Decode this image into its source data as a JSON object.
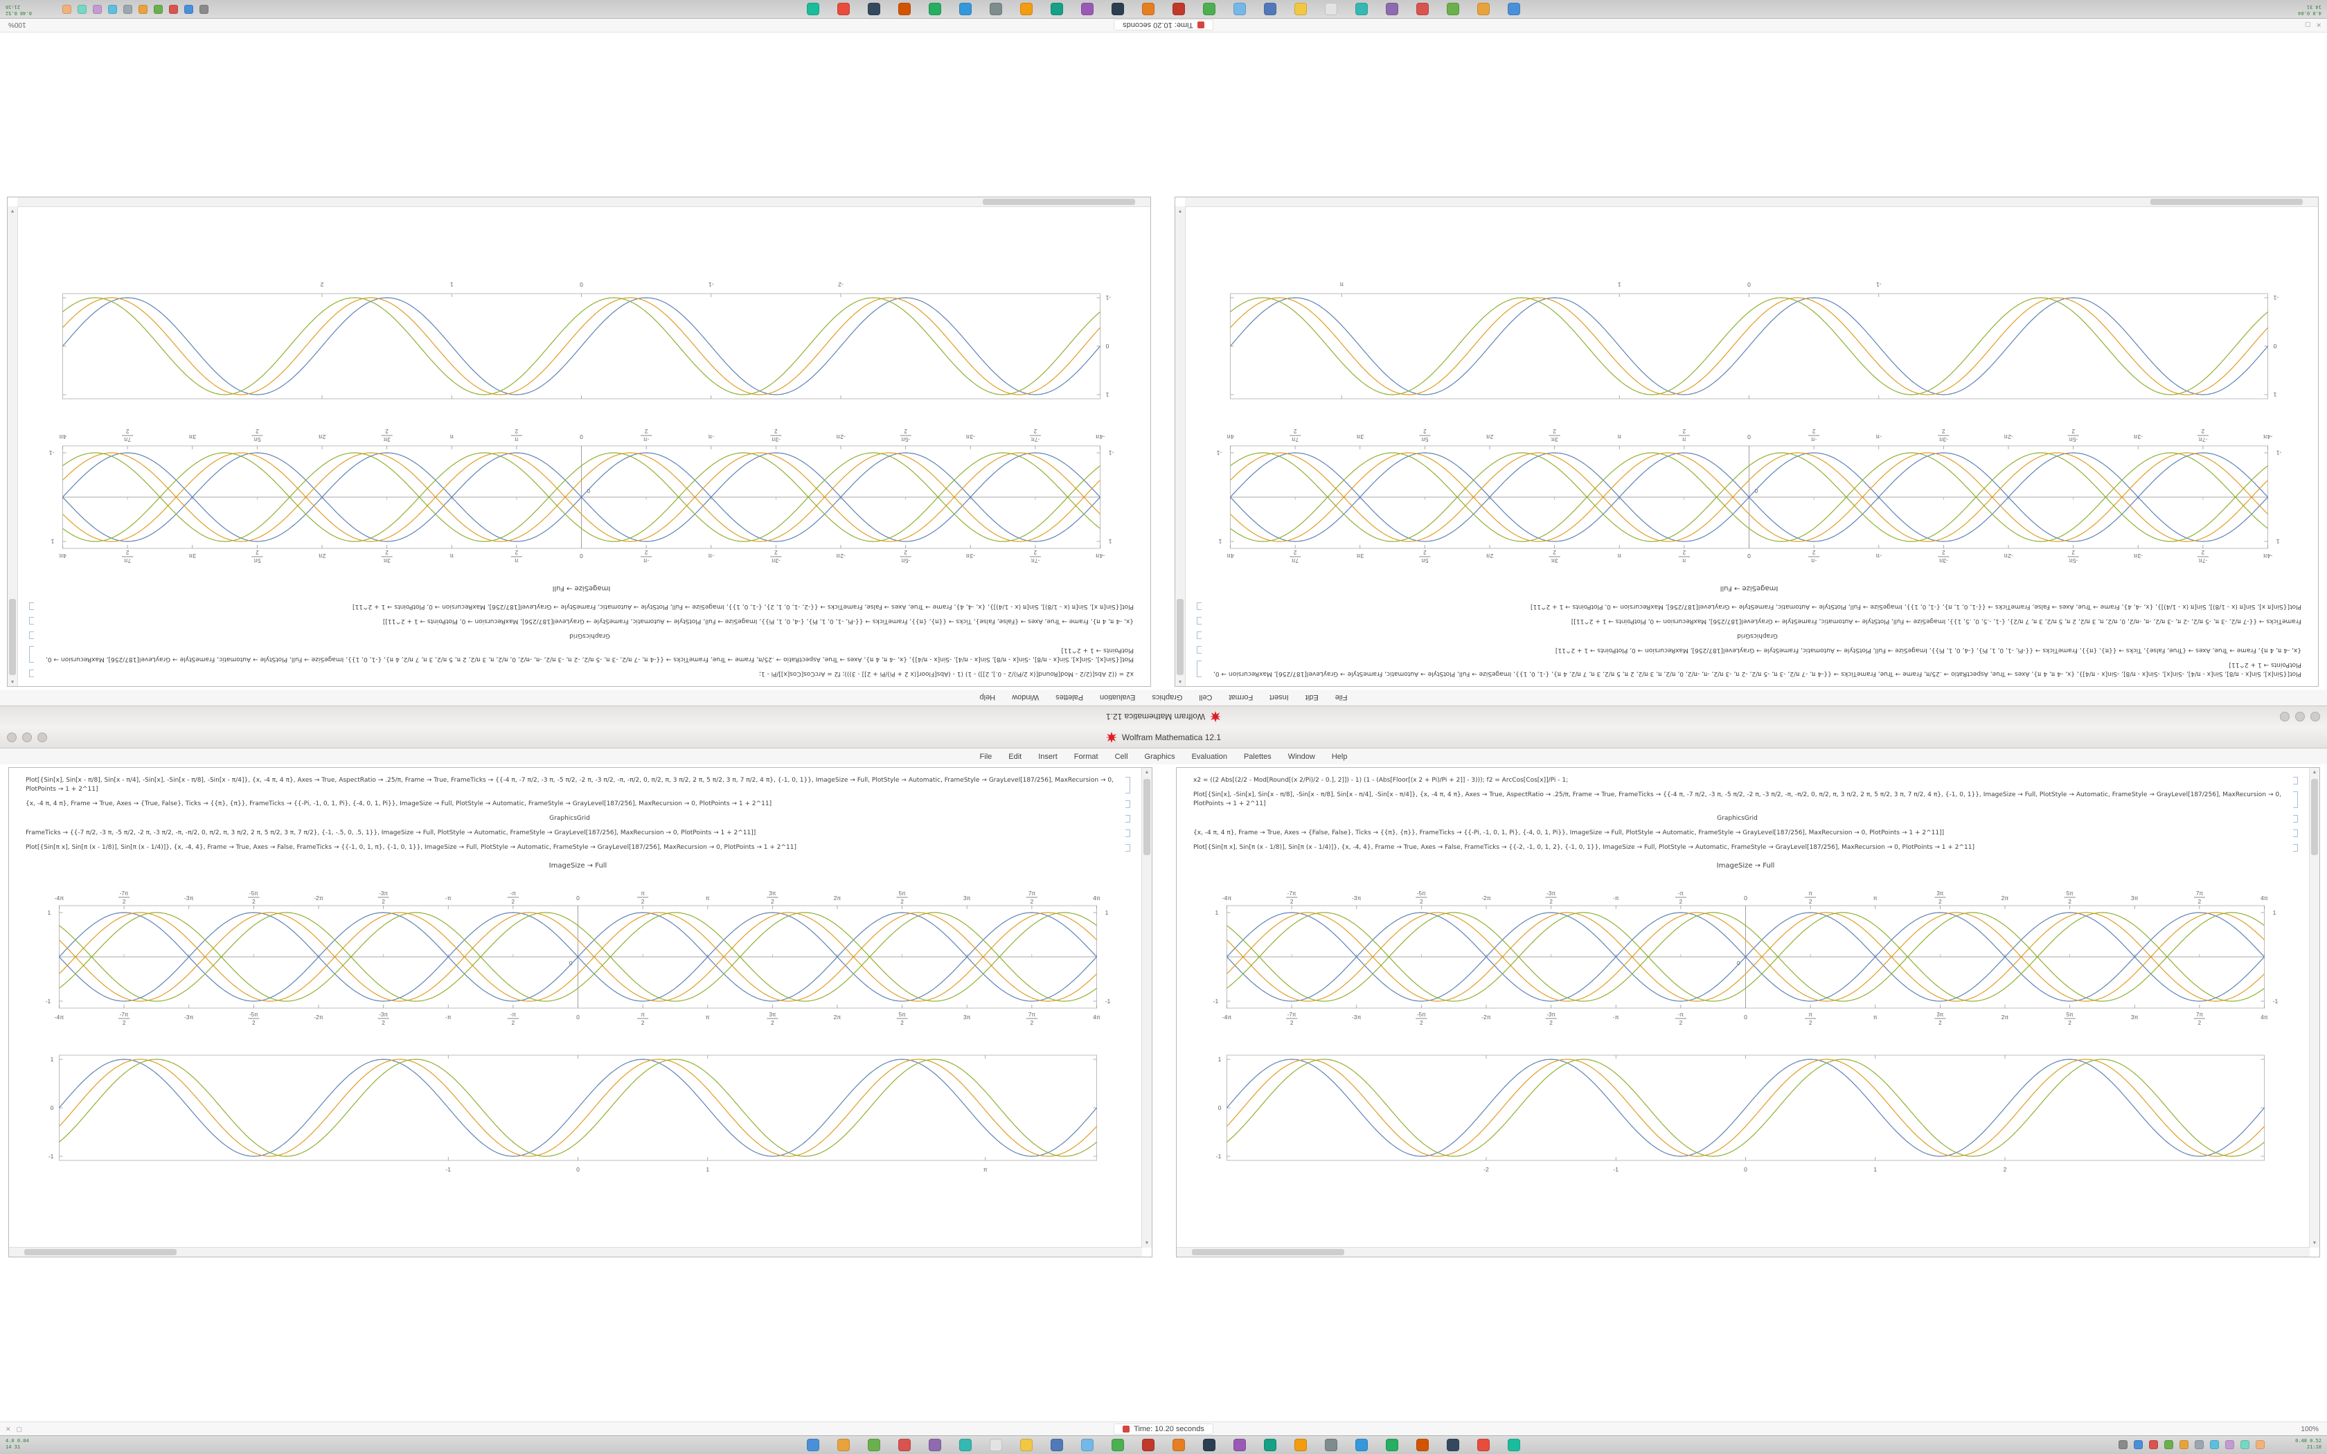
{
  "window": {
    "title": "Wolfram Mathematica 12.1",
    "menu_items": [
      "File",
      "Edit",
      "Insert",
      "Format",
      "Cell",
      "Graphics",
      "Evaluation",
      "Palettes",
      "Window",
      "Help"
    ]
  },
  "statusbar": {
    "timer_text": "Time: 10.20 seconds",
    "zoom_text": "100%",
    "left_icon_1": "✕",
    "left_icon_2": "▢"
  },
  "taskbar": {
    "stats_left_line1": "4.0 0.04",
    "stats_left_line2": "14 31",
    "stats_right_line1": "0.48 0.52",
    "stats_right_line2": "21:10",
    "app_icon_colors": [
      "#4a90d9",
      "#e8a33d",
      "#6ab04c",
      "#d9534f",
      "#8e6ab0",
      "#35b8b1",
      "#e3e3e3",
      "#f2c744",
      "#5178b8",
      "#74b8e8",
      "#4caf50",
      "#c0392b",
      "#e67e22",
      "#2c3e50",
      "#9b59b6",
      "#16a085",
      "#f39c12",
      "#7f8c8d",
      "#3498db",
      "#27ae60",
      "#d35400",
      "#34495e",
      "#e74c3c",
      "#1abc9c"
    ],
    "tray_icon_colors": [
      "#8a8a8a",
      "#4a90d9",
      "#d9534f",
      "#6ab04c",
      "#e8a33d",
      "#9aa7b0",
      "#5bc0de",
      "#c39bd3",
      "#76d7c4",
      "#f0b27a"
    ]
  },
  "notebooks": [
    {
      "caption": "ImageSize → Full",
      "cells": [
        {
          "t": "Plot[{Sin[x], Sin[x - π/8], Sin[x - π/4], -Sin[x], -Sin[x - π/8], -Sin[x - π/4]}, {x, -4 π, 4 π}, Axes → True, AspectRatio → .25/π, Frame → True, FrameTicks → {{-4 π, -7 π/2, -3 π, -5 π/2, -2 π, -3 π/2, -π, -π/2, 0, π/2, π, 3 π/2, 2 π, 5 π/2, 3 π, 7 π/2, 4 π}, {-1, 0, 1}}, ImageSize → Full, PlotStyle → Automatic, FrameStyle → GrayLevel[187/256], MaxRecursion → 0, PlotPoints → 1 + 2^11]"
        },
        {
          "t": "{x, -4 π, 4 π}, Frame → True, Axes → {True, False}, Ticks → {{π}, {π}}, FrameTicks → {{-Pi, -1, 0, 1, Pi}, {-4, 0, 1, Pi}}, ImageSize → Full, PlotStyle → Automatic, FrameStyle → GrayLevel[187/256], MaxRecursion → 0, PlotPoints → 1 + 2^11]"
        },
        {
          "t": "GraphicsGrid"
        },
        {
          "t": "FrameTicks → {{-7 π/2, -3 π, -5 π/2, -2 π, -3 π/2, -π, -π/2, 0, π/2, π, 3 π/2, 2 π, 5 π/2, 3 π, 7 π/2}, {-1, -.5, 0, .5, 1}}, ImageSize → Full, PlotStyle → Automatic, FrameStyle → GrayLevel[187/256], MaxRecursion → 0, PlotPoints → 1 + 2^11]]"
        },
        {
          "t": "Plot[{Sin[π x], Sin[π (x - 1/8)], Sin[π (x - 1/4)]}, {x, -4, 4}, Frame → True, Axes → False, FrameTicks → {{-1, 0, 1, π}, {-1, 0, 1}}, ImageSize → Full, PlotStyle → Automatic, FrameStyle → GrayLevel[187/256], MaxRecursion → 0, PlotPoints → 1 + 2^11]"
        }
      ]
    },
    {
      "caption": "ImageSize → Full",
      "cells": [
        {
          "t": "x2 = ((2 Abs[(2/2 - Mod[Round[(x 2/Pi)/2 - 0.], 2]]) - 1) (1 - (Abs[Floor[(x 2 + Pi)/Pi + 2]] - 3))); f2 = ArcCos[Cos[x]]/Pi - 1;"
        },
        {
          "t": "Plot[{Sin[x], -Sin[x], Sin[x - π/8], -Sin[x - π/8], Sin[x - π/4], -Sin[x - π/4]}, {x, -4 π, 4 π}, Axes → True, AspectRatio → .25/π, Frame → True, FrameTicks → {{-4 π, -7 π/2, -3 π, -5 π/2, -2 π, -3 π/2, -π, -π/2, 0, π/2, π, 3 π/2, 2 π, 5 π/2, 3 π, 7 π/2, 4 π}, {-1, 0, 1}}, ImageSize → Full, PlotStyle → Automatic, FrameStyle → GrayLevel[187/256], MaxRecursion → 0, PlotPoints → 1 + 2^11]"
        },
        {
          "t": "GraphicsGrid"
        },
        {
          "t": "{x, -4 π, 4 π}, Frame → True, Axes → {False, False}, Ticks → {{π}, {π}}, FrameTicks → {{-Pi, -1, 0, 1, Pi}, {-4, 0, 1, Pi}}, ImageSize → Full, PlotStyle → Automatic, FrameStyle → GrayLevel[187/256], MaxRecursion → 0, PlotPoints → 1 + 2^11]]"
        },
        {
          "t": "Plot[{Sin[π x], Sin[π (x - 1/8)], Sin[π (x - 1/4)]}, {x, -4, 4}, Frame → True, Axes → False, FrameTicks → {{-2, -1, 0, 1, 2}, {-1, 0, 1}}, ImageSize → Full, PlotStyle → Automatic, FrameStyle → GrayLevel[187/256], MaxRecursion → 0, PlotPoints → 1 + 2^11]"
        }
      ]
    }
  ],
  "chart_data": [
    {
      "id": "left-braid",
      "type": "line",
      "kind": "braid",
      "x_range": [
        -12.566370614,
        12.566370614
      ],
      "y_range": [
        -1.1,
        1.1
      ],
      "x_tick_labels": [
        "-4π",
        "-7π/2",
        "-3π",
        "-5π/2",
        "-2π",
        "-3π/2",
        "-π",
        "-π/2",
        "0",
        "π/2",
        "π",
        "3π/2",
        "2π",
        "5π/2",
        "3π",
        "7π/2",
        "4π"
      ],
      "y_top_label": "1",
      "y_bottom_label": "-1",
      "origin_label": "0",
      "frame_color": "#bcbcbc",
      "axis_color": "#8a8a8a",
      "tick_color": "#5f5f5f",
      "series": [
        {
          "name": "Sin[x]",
          "color": "#5e81b5",
          "phase": 0,
          "sign": 1
        },
        {
          "name": "-Sin[x]",
          "color": "#5e81b5",
          "phase": 0,
          "sign": -1
        },
        {
          "name": "Sin[x-π/8]",
          "color": "#e19c24",
          "phase": 0.3926990817,
          "sign": 1
        },
        {
          "name": "-Sin[x-π/8]",
          "color": "#e19c24",
          "phase": 0.3926990817,
          "sign": -1
        },
        {
          "name": "Sin[x-π/4]",
          "color": "#8fb032",
          "phase": 0.7853981634,
          "sign": 1
        },
        {
          "name": "-Sin[x-π/4]",
          "color": "#8fb032",
          "phase": 0.7853981634,
          "sign": -1
        }
      ]
    },
    {
      "id": "left-framed",
      "type": "line",
      "kind": "framed",
      "x_range": [
        -4,
        4
      ],
      "y_range": [
        -1.08,
        1.08
      ],
      "x_ticks": [
        {
          "v": -1,
          "label": "-1"
        },
        {
          "v": 0,
          "label": "0"
        },
        {
          "v": 1,
          "label": "1"
        },
        {
          "v": 3.14159,
          "label": "π"
        }
      ],
      "y_ticks": [
        {
          "v": -1,
          "label": "-1"
        },
        {
          "v": 0,
          "label": "0"
        },
        {
          "v": 1,
          "label": "1"
        }
      ],
      "frame_color": "#bcbcbc",
      "tick_color": "#5f5f5f",
      "series": [
        {
          "name": "Sin[πx]",
          "color": "#5e81b5",
          "shift": 0
        },
        {
          "name": "Sin[π(x-1/8)]",
          "color": "#e19c24",
          "shift": 0.125
        },
        {
          "name": "Sin[π(x-1/4)]",
          "color": "#8fb032",
          "shift": 0.25
        }
      ]
    },
    {
      "id": "right-braid",
      "type": "line",
      "kind": "braid",
      "x_range": [
        -12.566370614,
        12.566370614
      ],
      "y_range": [
        -1.1,
        1.1
      ],
      "x_tick_labels": [
        "-4π",
        "-7π/2",
        "-3π",
        "-5π/2",
        "-2π",
        "-3π/2",
        "-π",
        "-π/2",
        "0",
        "π/2",
        "π",
        "3π/2",
        "2π",
        "5π/2",
        "3π",
        "7π/2",
        "4π"
      ],
      "y_top_label": "1",
      "y_bottom_label": "-1",
      "origin_label": "0",
      "frame_color": "#bcbcbc",
      "axis_color": "#8a8a8a",
      "tick_color": "#5f5f5f",
      "series": [
        {
          "name": "Sin[x]",
          "color": "#5e81b5",
          "phase": 0,
          "sign": 1
        },
        {
          "name": "-Sin[x]",
          "color": "#5e81b5",
          "phase": 0,
          "sign": -1
        },
        {
          "name": "Sin[x-π/8]",
          "color": "#e19c24",
          "phase": 0.3926990817,
          "sign": 1
        },
        {
          "name": "-Sin[x-π/8]",
          "color": "#e19c24",
          "phase": 0.3926990817,
          "sign": -1
        },
        {
          "name": "Sin[x-π/4]",
          "color": "#8fb032",
          "phase": 0.7853981634,
          "sign": 1
        },
        {
          "name": "-Sin[x-π/4]",
          "color": "#8fb032",
          "phase": 0.7853981634,
          "sign": -1
        }
      ]
    },
    {
      "id": "right-framed",
      "type": "line",
      "kind": "framed",
      "x_range": [
        -4,
        4
      ],
      "y_range": [
        -1.08,
        1.08
      ],
      "x_ticks": [
        {
          "v": -2,
          "label": "-2"
        },
        {
          "v": -1,
          "label": "-1"
        },
        {
          "v": 0,
          "label": "0"
        },
        {
          "v": 1,
          "label": "1"
        },
        {
          "v": 2,
          "label": "2"
        }
      ],
      "y_ticks": [
        {
          "v": -1,
          "label": "-1"
        },
        {
          "v": 0,
          "label": "0"
        },
        {
          "v": 1,
          "label": "1"
        }
      ],
      "frame_color": "#bcbcbc",
      "tick_color": "#5f5f5f",
      "series": [
        {
          "name": "Sin[πx]",
          "color": "#5e81b5",
          "shift": 0
        },
        {
          "name": "Sin[π(x-1/8)]",
          "color": "#e19c24",
          "shift": 0.125
        },
        {
          "name": "Sin[π(x-1/4)]",
          "color": "#8fb032",
          "shift": 0.25
        }
      ]
    }
  ]
}
